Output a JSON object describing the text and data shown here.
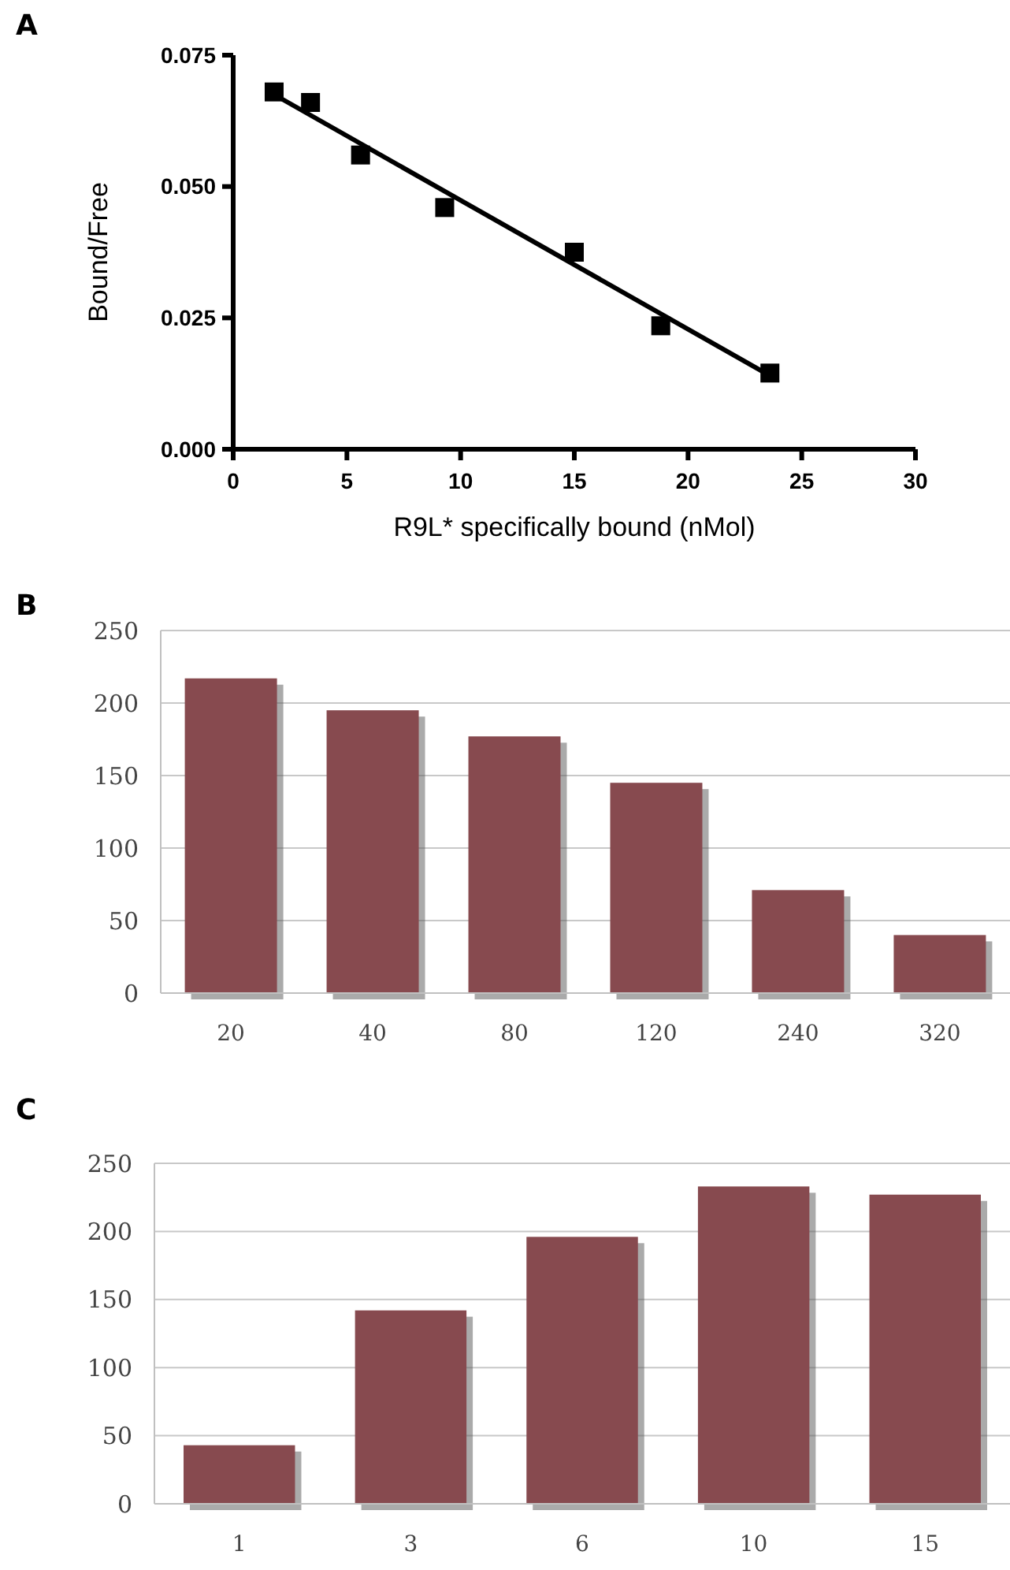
{
  "chart_data": [
    {
      "type": "scatter",
      "title": "A",
      "xlabel": "R9L* specifically bound (nMol)",
      "ylabel": "Bound/Free",
      "xlim": [
        0,
        30
      ],
      "xticks": [
        0,
        5,
        10,
        15,
        20,
        25,
        30
      ],
      "ylim": [
        0,
        0.075
      ],
      "yticks": [
        {
          "value": 0,
          "label": "0.000"
        },
        {
          "value": 0.025,
          "label": "0.025"
        },
        {
          "value": 0.05,
          "label": "0.050"
        },
        {
          "value": 0.075,
          "label": "0.075"
        }
      ],
      "grid": false,
      "series": [
        {
          "type": "scatter",
          "marker": "square",
          "color": "#000000",
          "x": [
            1.8,
            3.4,
            5.6,
            9.3,
            15,
            18.8,
            23.6
          ],
          "values": [
            0.068,
            0.066,
            0.056,
            0.046,
            0.0375,
            0.0235,
            0.0145
          ]
        },
        {
          "type": "line",
          "marker": "none",
          "line_style": "solid",
          "color": "#000000",
          "x": [
            1.8,
            23.6
          ],
          "values": [
            0.0675,
            0.014
          ]
        }
      ]
    },
    {
      "type": "bar",
      "title": "B",
      "categories": [
        "20",
        "40",
        "80",
        "120",
        "240",
        "320"
      ],
      "values": [
        217,
        195,
        177,
        145,
        71,
        40
      ],
      "color": "#874a4f",
      "ylim": [
        0,
        250
      ],
      "yticks": [
        0,
        50,
        100,
        150,
        200,
        250
      ],
      "grid": "y"
    },
    {
      "type": "bar",
      "title": "C",
      "categories": [
        "1",
        "3",
        "6",
        "10",
        "15"
      ],
      "values": [
        43,
        142,
        196,
        233,
        227
      ],
      "color": "#874a4f",
      "ylim": [
        0,
        250
      ],
      "yticks": [
        0,
        50,
        100,
        150,
        200,
        250
      ],
      "grid": "y"
    }
  ]
}
